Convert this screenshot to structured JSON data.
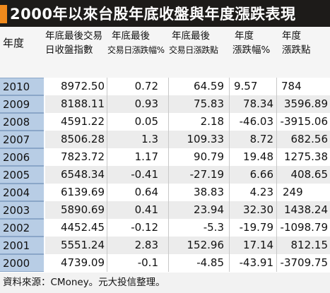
{
  "title": "2000年以來台股年底收盤與年度漲跌表現",
  "header": {
    "year": "年度",
    "close": [
      "年底最後交易",
      "日收盤指數"
    ],
    "last_pct": [
      "年底最後",
      "交易日漲跌幅%"
    ],
    "last_pts": [
      "年底最後",
      "交易日漲跌點"
    ],
    "year_pct": [
      "年度",
      "漲跌幅%"
    ],
    "year_pts": [
      "年度",
      "漲跌點"
    ]
  },
  "rows": [
    {
      "year": "2010",
      "close": "8972.50",
      "last_pct": "0.72",
      "last_pts": "64.59",
      "year_pct": "9.57",
      "year_pts": "784"
    },
    {
      "year": "2009",
      "close": "8188.11",
      "last_pct": "0.93",
      "last_pts": "75.83",
      "year_pct": "78.34",
      "year_pts": "3596.89"
    },
    {
      "year": "2008",
      "close": "4591.22",
      "last_pct": "0.05",
      "last_pts": "2.18",
      "year_pct": "-46.03",
      "year_pts": "-3915.06"
    },
    {
      "year": "2007",
      "close": "8506.28",
      "last_pct": "1.3",
      "last_pts": "109.33",
      "year_pct": "8.72",
      "year_pts": "682.56"
    },
    {
      "year": "2006",
      "close": "7823.72",
      "last_pct": "1.17",
      "last_pts": "90.79",
      "year_pct": "19.48",
      "year_pts": "1275.38"
    },
    {
      "year": "2005",
      "close": "6548.34",
      "last_pct": "-0.41",
      "last_pts": "-27.19",
      "year_pct": "6.66",
      "year_pts": "408.65"
    },
    {
      "year": "2004",
      "close": "6139.69",
      "last_pct": "0.64",
      "last_pts": "38.83",
      "year_pct": "4.23",
      "year_pts": "249"
    },
    {
      "year": "2003",
      "close": "5890.69",
      "last_pct": "0.41",
      "last_pts": "23.94",
      "year_pct": "32.30",
      "year_pts": "1438.24"
    },
    {
      "year": "2002",
      "close": "4452.45",
      "last_pct": "-0.12",
      "last_pts": "-5.3",
      "year_pct": "-19.79",
      "year_pts": "-1098.79"
    },
    {
      "year": "2001",
      "close": "5551.24",
      "last_pct": "2.83",
      "last_pts": "152.96",
      "year_pct": "17.14",
      "year_pts": "812.15"
    },
    {
      "year": "2000",
      "close": "4739.09",
      "last_pct": "-0.1",
      "last_pts": "-4.85",
      "year_pct": "-43.91",
      "year_pts": "-3709.75"
    }
  ],
  "source": "資料來源：CMoney。元大投信整理。",
  "colors": {
    "title_bg": "#1d1b19",
    "accent": "#f18a1c",
    "year_bg": "#b8cde5"
  }
}
